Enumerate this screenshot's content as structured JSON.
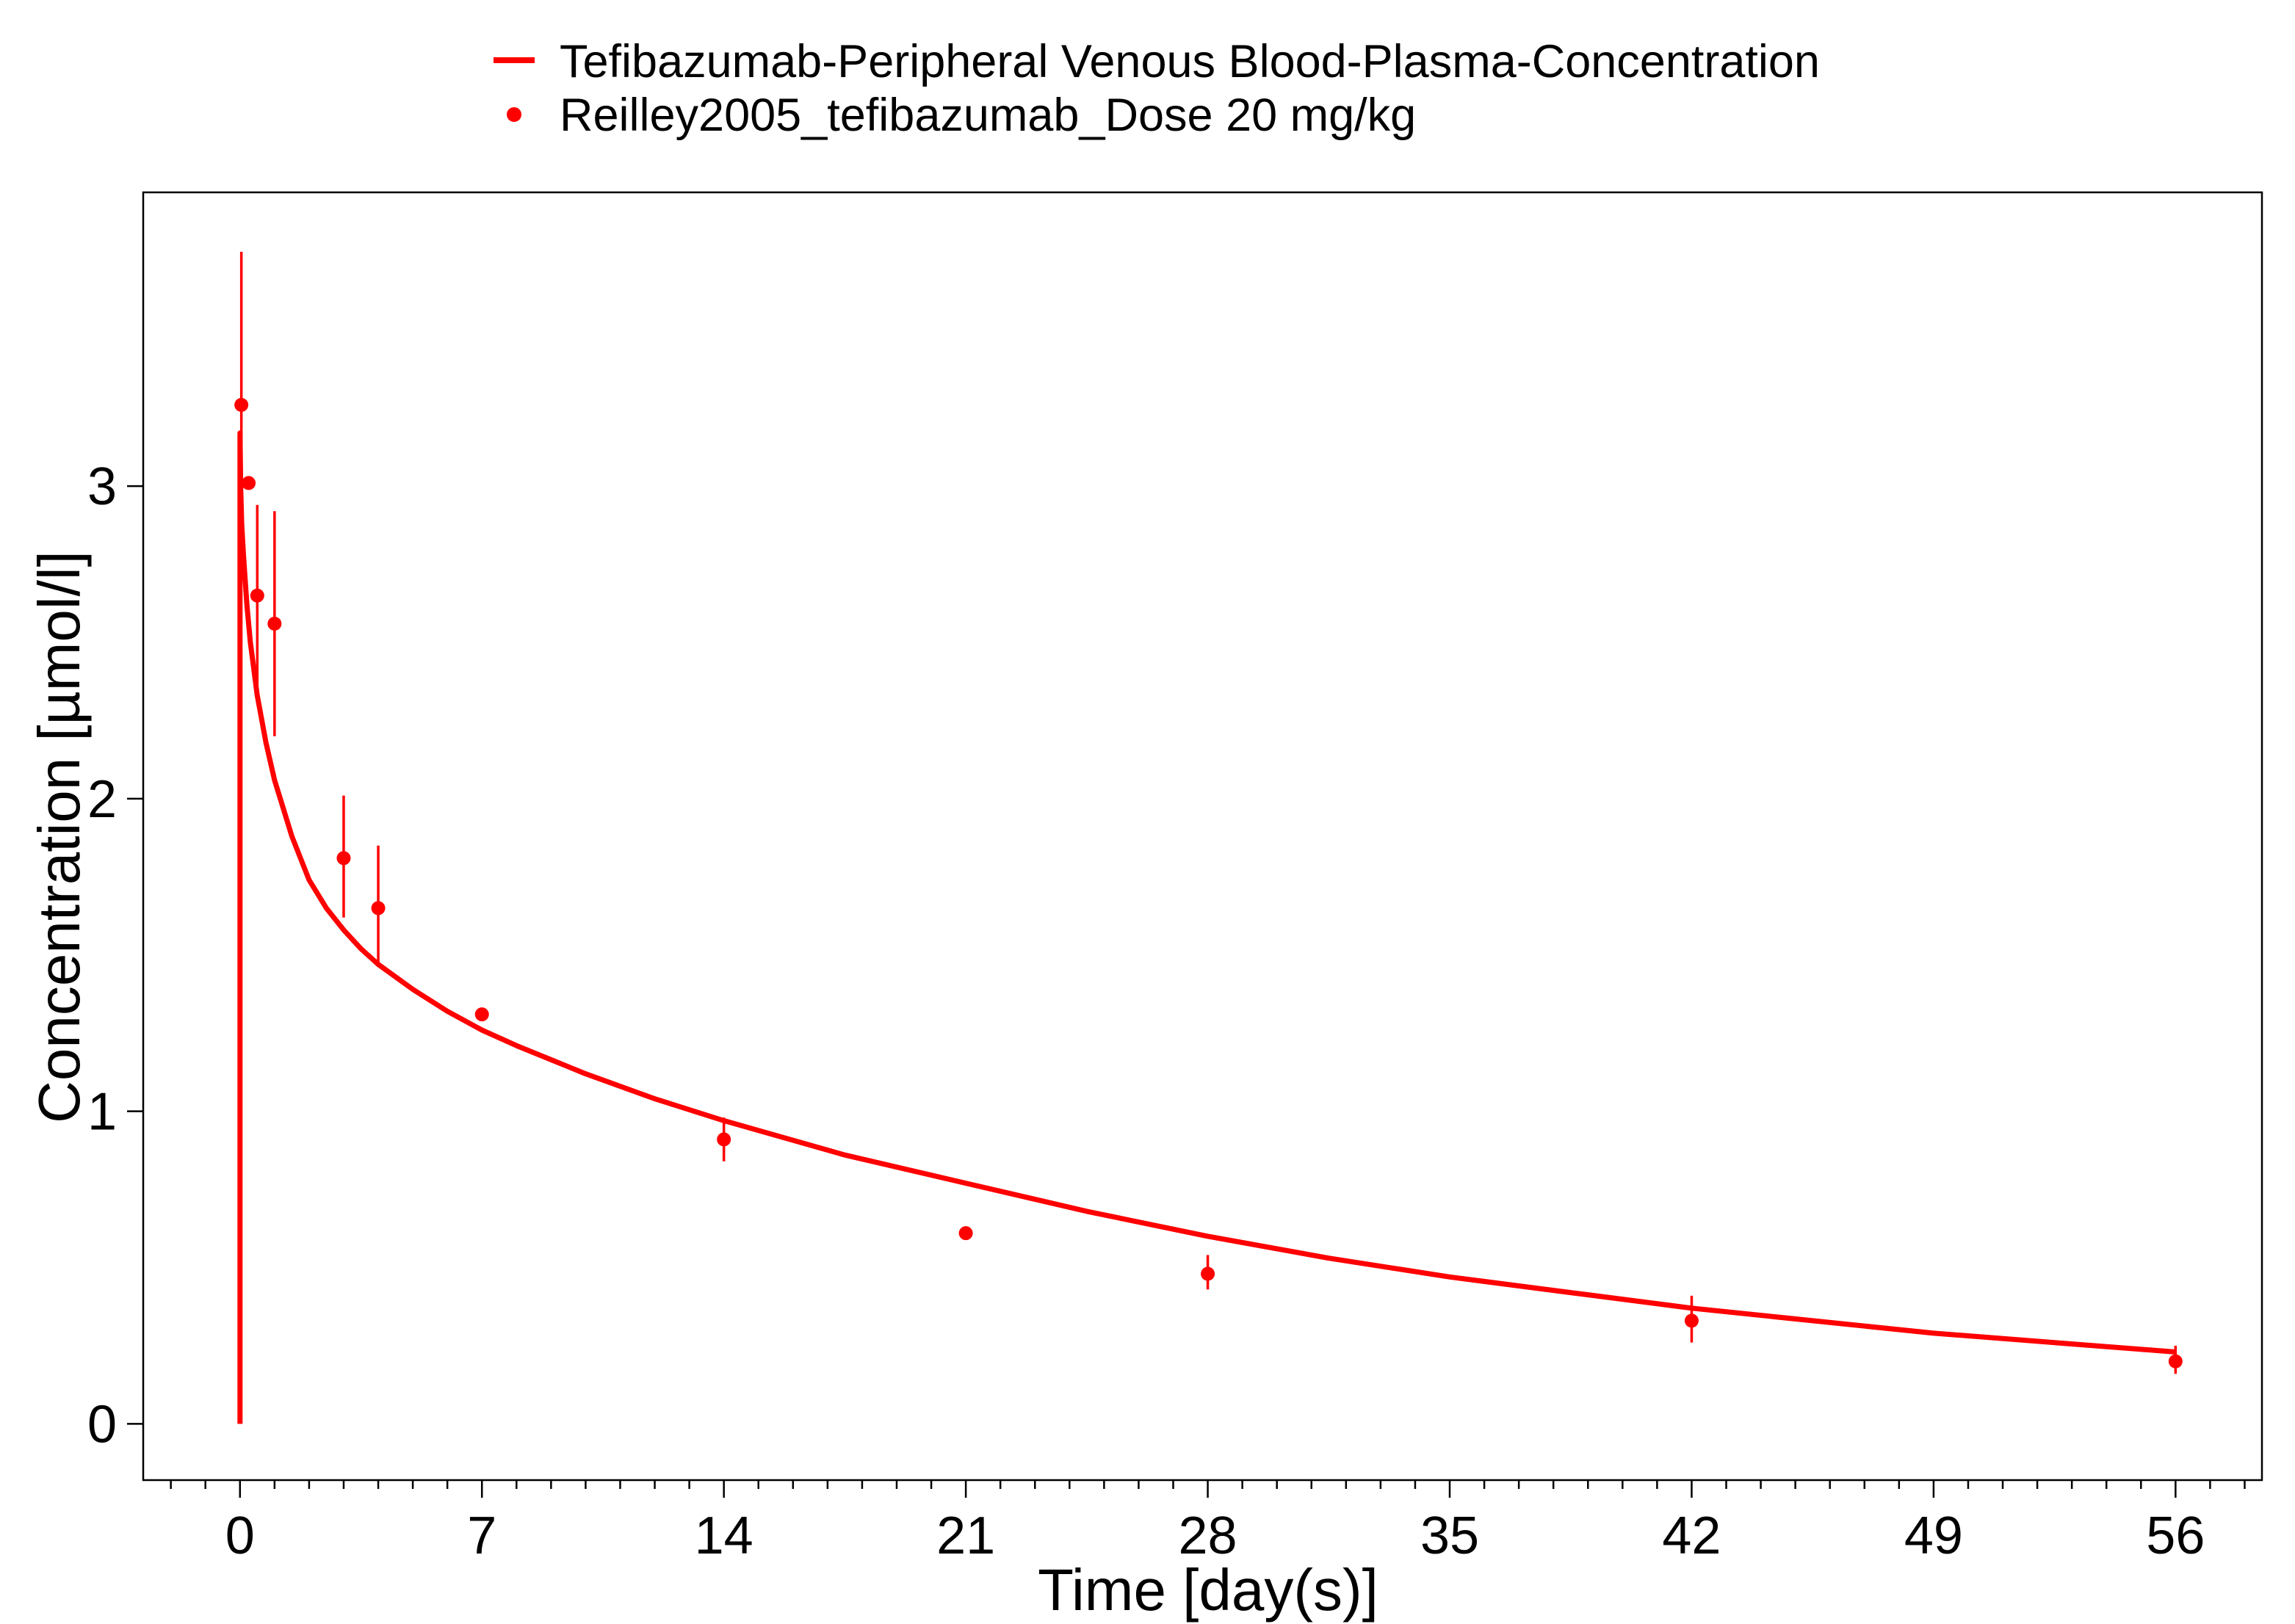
{
  "chart_data": {
    "type": "line",
    "xlabel": "Time [day(s)]",
    "ylabel": "Concentration [µmol/l]",
    "xlim": [
      -2.8,
      58.5
    ],
    "ylim": [
      -0.18,
      3.94
    ],
    "x_ticks": [
      0,
      7,
      14,
      21,
      28,
      35,
      42,
      49,
      56
    ],
    "x_tick_labels": [
      "0",
      "7",
      "14",
      "21",
      "28",
      "35",
      "42",
      "49",
      "56"
    ],
    "x_minor_tick_step": 1,
    "y_ticks": [
      0,
      1,
      2,
      3
    ],
    "y_tick_labels": [
      "0",
      "1",
      "2",
      "3"
    ],
    "grid": false,
    "legend_position": "top",
    "colors": {
      "series": "#ff0000"
    },
    "series": [
      {
        "name": "Tefibazumab-Peripheral Venous Blood-Plasma-Concentration",
        "kind": "line",
        "x": [
          0,
          0,
          0.02,
          0.05,
          0.1,
          0.2,
          0.3,
          0.5,
          0.75,
          1,
          1.5,
          2,
          2.5,
          3,
          3.5,
          4,
          5,
          6,
          7,
          8,
          10,
          12,
          14,
          17.5,
          21,
          24.5,
          28,
          31.5,
          35,
          38.5,
          42,
          45.5,
          49,
          52.5,
          56
        ],
        "y": [
          0,
          3.17,
          3.0,
          2.88,
          2.78,
          2.62,
          2.5,
          2.33,
          2.18,
          2.06,
          1.88,
          1.74,
          1.65,
          1.58,
          1.52,
          1.47,
          1.39,
          1.32,
          1.26,
          1.21,
          1.12,
          1.04,
          0.97,
          0.86,
          0.77,
          0.68,
          0.6,
          0.53,
          0.47,
          0.42,
          0.37,
          0.33,
          0.29,
          0.26,
          0.23
        ]
      },
      {
        "name": "Reilley2005_tefibazumab_Dose 20 mg/kg",
        "kind": "points",
        "x": [
          0.04,
          0.25,
          0.5,
          1,
          3,
          4,
          7,
          14,
          21,
          28,
          42,
          56
        ],
        "y": [
          3.26,
          3.01,
          2.65,
          2.56,
          1.81,
          1.65,
          1.31,
          0.91,
          0.61,
          0.48,
          0.33,
          0.2
        ],
        "error_low": [
          2.77,
          3.01,
          2.36,
          2.2,
          1.62,
          1.47,
          1.31,
          0.84,
          0.61,
          0.43,
          0.26,
          0.16
        ],
        "error_high": [
          3.75,
          3.01,
          2.94,
          2.92,
          2.01,
          1.85,
          1.31,
          0.98,
          0.61,
          0.54,
          0.41,
          0.25
        ]
      }
    ]
  }
}
